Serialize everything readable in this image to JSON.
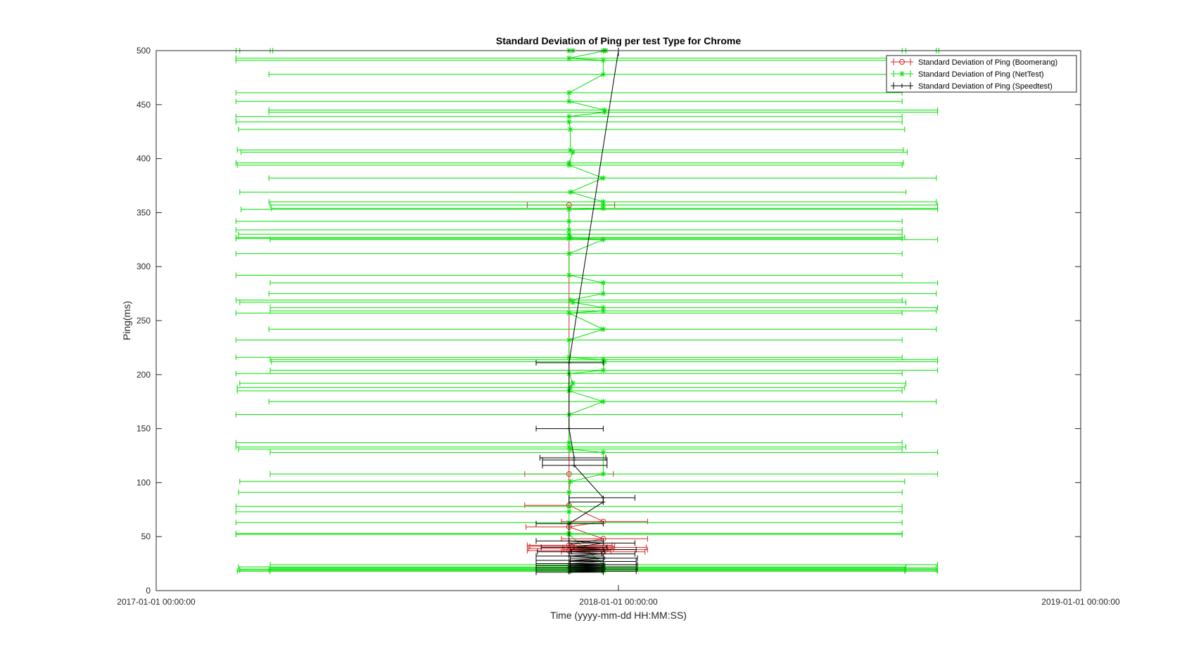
{
  "chart_data": {
    "type": "errorbar",
    "title": "Standard Deviation of Ping per test Type for Chrome",
    "xlabel": "Time (yyyy-mm-dd HH:MM:SS)",
    "ylabel": "Ping(ms)",
    "xlim": [
      "2017-01-01",
      "2019-01-01"
    ],
    "ylim": [
      0,
      500
    ],
    "x_ticks": [
      {
        "value": 0,
        "label": "2017-01-01 00:00:00"
      },
      {
        "value": 365,
        "label": "2018-01-01 00:00:00"
      },
      {
        "value": 730,
        "label": "2019-01-01 00:00:00"
      }
    ],
    "y_ticks": [
      0,
      50,
      100,
      150,
      200,
      250,
      300,
      350,
      400,
      450,
      500
    ],
    "x_units": "days since 2017-01-01",
    "legend_position": "top-right",
    "series": [
      {
        "name": "Standard Deviation of Ping (Boomerang)",
        "color": "#d62728",
        "marker": "o",
        "points": [
          {
            "x": 326,
            "y": 357,
            "lo": 293,
            "hi": 362
          },
          {
            "x": 326,
            "y": 108,
            "lo": 291,
            "hi": 361
          },
          {
            "x": 326,
            "y": 79,
            "lo": 291,
            "hi": 326
          },
          {
            "x": 353,
            "y": 64,
            "lo": 320,
            "hi": 388
          },
          {
            "x": 326,
            "y": 59,
            "lo": 292,
            "hi": 326
          },
          {
            "x": 353,
            "y": 48,
            "lo": 320,
            "hi": 388
          },
          {
            "x": 326,
            "y": 42,
            "lo": 293,
            "hi": 360
          },
          {
            "x": 328,
            "y": 41,
            "lo": 295,
            "hi": 362
          },
          {
            "x": 354,
            "y": 40,
            "lo": 321,
            "hi": 387
          },
          {
            "x": 327,
            "y": 39,
            "lo": 294,
            "hi": 361
          },
          {
            "x": 355,
            "y": 38,
            "lo": 322,
            "hi": 388
          },
          {
            "x": 326,
            "y": 37,
            "lo": 293,
            "hi": 359
          },
          {
            "x": 353,
            "y": 36,
            "lo": 320,
            "hi": 386
          }
        ]
      },
      {
        "name": "Standard Deviation of Ping (NetTest)",
        "color": "#00e000",
        "marker": "*",
        "points": [
          {
            "x": 326,
            "y": 500,
            "lo": 63,
            "hi": 589
          },
          {
            "x": 329,
            "y": 500,
            "lo": 66,
            "hi": 592
          },
          {
            "x": 353,
            "y": 500,
            "lo": 90,
            "hi": 616
          },
          {
            "x": 355,
            "y": 500,
            "lo": 92,
            "hi": 618
          },
          {
            "x": 326,
            "y": 493,
            "lo": 63,
            "hi": 615
          },
          {
            "x": 353,
            "y": 491,
            "lo": 63,
            "hi": 616
          },
          {
            "x": 353,
            "y": 478,
            "lo": 89,
            "hi": 591
          },
          {
            "x": 326,
            "y": 461,
            "lo": 63,
            "hi": 589
          },
          {
            "x": 326,
            "y": 453,
            "lo": 63,
            "hi": 589
          },
          {
            "x": 354,
            "y": 445,
            "lo": 89,
            "hi": 617
          },
          {
            "x": 354,
            "y": 443,
            "lo": 89,
            "hi": 617
          },
          {
            "x": 326,
            "y": 439,
            "lo": 63,
            "hi": 589
          },
          {
            "x": 326,
            "y": 434,
            "lo": 63,
            "hi": 589
          },
          {
            "x": 327,
            "y": 427,
            "lo": 65,
            "hi": 591
          },
          {
            "x": 327,
            "y": 408,
            "lo": 64,
            "hi": 590
          },
          {
            "x": 329,
            "y": 406,
            "lo": 67,
            "hi": 593
          },
          {
            "x": 326,
            "y": 396,
            "lo": 63,
            "hi": 590
          },
          {
            "x": 326,
            "y": 394,
            "lo": 64,
            "hi": 589
          },
          {
            "x": 353,
            "y": 382,
            "lo": 89,
            "hi": 616
          },
          {
            "x": 327,
            "y": 369,
            "lo": 66,
            "hi": 592
          },
          {
            "x": 353,
            "y": 360,
            "lo": 89,
            "hi": 616
          },
          {
            "x": 353,
            "y": 357,
            "lo": 90,
            "hi": 617
          },
          {
            "x": 353,
            "y": 354,
            "lo": 91,
            "hi": 617
          },
          {
            "x": 326,
            "y": 353,
            "lo": 67,
            "hi": 617
          },
          {
            "x": 326,
            "y": 342,
            "lo": 63,
            "hi": 589
          },
          {
            "x": 326,
            "y": 334,
            "lo": 63,
            "hi": 589
          },
          {
            "x": 326,
            "y": 330,
            "lo": 65,
            "hi": 589
          },
          {
            "x": 327,
            "y": 327,
            "lo": 63,
            "hi": 591
          },
          {
            "x": 326,
            "y": 326,
            "lo": 63,
            "hi": 589
          },
          {
            "x": 353,
            "y": 325,
            "lo": 90,
            "hi": 617
          },
          {
            "x": 326,
            "y": 312,
            "lo": 63,
            "hi": 589
          },
          {
            "x": 326,
            "y": 292,
            "lo": 63,
            "hi": 589
          },
          {
            "x": 353,
            "y": 285,
            "lo": 90,
            "hi": 617
          },
          {
            "x": 353,
            "y": 275,
            "lo": 89,
            "hi": 616
          },
          {
            "x": 327,
            "y": 269,
            "lo": 63,
            "hi": 589
          },
          {
            "x": 329,
            "y": 267,
            "lo": 66,
            "hi": 592
          },
          {
            "x": 353,
            "y": 262,
            "lo": 90,
            "hi": 617
          },
          {
            "x": 353,
            "y": 259,
            "lo": 90,
            "hi": 616
          },
          {
            "x": 326,
            "y": 257,
            "lo": 63,
            "hi": 589
          },
          {
            "x": 353,
            "y": 242,
            "lo": 89,
            "hi": 616
          },
          {
            "x": 326,
            "y": 232,
            "lo": 63,
            "hi": 589
          },
          {
            "x": 326,
            "y": 216,
            "lo": 63,
            "hi": 589
          },
          {
            "x": 353,
            "y": 214,
            "lo": 90,
            "hi": 617
          },
          {
            "x": 354,
            "y": 212,
            "lo": 91,
            "hi": 617
          },
          {
            "x": 353,
            "y": 204,
            "lo": 90,
            "hi": 617
          },
          {
            "x": 326,
            "y": 201,
            "lo": 63,
            "hi": 589
          },
          {
            "x": 329,
            "y": 192,
            "lo": 66,
            "hi": 592
          },
          {
            "x": 327,
            "y": 188,
            "lo": 64,
            "hi": 591
          },
          {
            "x": 326,
            "y": 185,
            "lo": 64,
            "hi": 589
          },
          {
            "x": 353,
            "y": 175,
            "lo": 89,
            "hi": 616
          },
          {
            "x": 326,
            "y": 163,
            "lo": 63,
            "hi": 589
          },
          {
            "x": 326,
            "y": 137,
            "lo": 63,
            "hi": 589
          },
          {
            "x": 326,
            "y": 133,
            "lo": 63,
            "hi": 592
          },
          {
            "x": 327,
            "y": 131,
            "lo": 65,
            "hi": 589
          },
          {
            "x": 353,
            "y": 128,
            "lo": 90,
            "hi": 617
          },
          {
            "x": 353,
            "y": 108,
            "lo": 90,
            "hi": 617
          },
          {
            "x": 327,
            "y": 101,
            "lo": 66,
            "hi": 591
          },
          {
            "x": 326,
            "y": 91,
            "lo": 65,
            "hi": 589
          },
          {
            "x": 326,
            "y": 78,
            "lo": 63,
            "hi": 589
          },
          {
            "x": 326,
            "y": 73,
            "lo": 63,
            "hi": 589
          },
          {
            "x": 326,
            "y": 63,
            "lo": 63,
            "hi": 589
          },
          {
            "x": 326,
            "y": 53,
            "lo": 63,
            "hi": 589
          },
          {
            "x": 326,
            "y": 52,
            "lo": 63,
            "hi": 589
          },
          {
            "x": 353,
            "y": 24,
            "lo": 90,
            "hi": 617
          },
          {
            "x": 326,
            "y": 22,
            "lo": 65,
            "hi": 592
          },
          {
            "x": 353,
            "y": 21,
            "lo": 90,
            "hi": 616
          },
          {
            "x": 327,
            "y": 20,
            "lo": 65,
            "hi": 591
          },
          {
            "x": 353,
            "y": 20,
            "lo": 90,
            "hi": 617
          },
          {
            "x": 326,
            "y": 19,
            "lo": 66,
            "hi": 592
          },
          {
            "x": 353,
            "y": 19,
            "lo": 89,
            "hi": 616
          },
          {
            "x": 327,
            "y": 18,
            "lo": 64,
            "hi": 591
          },
          {
            "x": 353,
            "y": 18,
            "lo": 90,
            "hi": 617
          }
        ]
      },
      {
        "name": "Standard Deviation of Ping (Speedtest)",
        "color": "#000000",
        "marker": "+",
        "points": [
          {
            "x": 365,
            "y": 500,
            "lo": 365,
            "hi": 365
          },
          {
            "x": 326,
            "y": 211,
            "lo": 300,
            "hi": 353
          },
          {
            "x": 326,
            "y": 150,
            "lo": 300,
            "hi": 353
          },
          {
            "x": 330,
            "y": 123,
            "lo": 303,
            "hi": 355
          },
          {
            "x": 330,
            "y": 121,
            "lo": 305,
            "hi": 356
          },
          {
            "x": 330,
            "y": 116,
            "lo": 305,
            "hi": 356
          },
          {
            "x": 353,
            "y": 86,
            "lo": 326,
            "hi": 378
          },
          {
            "x": 353,
            "y": 82,
            "lo": 326,
            "hi": 353
          },
          {
            "x": 326,
            "y": 62,
            "lo": 300,
            "hi": 353
          },
          {
            "x": 326,
            "y": 46,
            "lo": 300,
            "hi": 353
          },
          {
            "x": 353,
            "y": 44,
            "lo": 326,
            "hi": 378
          },
          {
            "x": 330,
            "y": 40,
            "lo": 304,
            "hi": 356
          },
          {
            "x": 353,
            "y": 38,
            "lo": 327,
            "hi": 379
          },
          {
            "x": 328,
            "y": 36,
            "lo": 301,
            "hi": 354
          },
          {
            "x": 352,
            "y": 34,
            "lo": 326,
            "hi": 378
          },
          {
            "x": 326,
            "y": 32,
            "lo": 300,
            "hi": 353
          },
          {
            "x": 354,
            "y": 30,
            "lo": 327,
            "hi": 380
          },
          {
            "x": 327,
            "y": 28,
            "lo": 300,
            "hi": 353
          },
          {
            "x": 353,
            "y": 27,
            "lo": 326,
            "hi": 379
          },
          {
            "x": 326,
            "y": 25,
            "lo": 300,
            "hi": 353
          },
          {
            "x": 354,
            "y": 24,
            "lo": 327,
            "hi": 380
          },
          {
            "x": 327,
            "y": 23,
            "lo": 300,
            "hi": 353
          },
          {
            "x": 353,
            "y": 22,
            "lo": 326,
            "hi": 379
          },
          {
            "x": 326,
            "y": 21,
            "lo": 300,
            "hi": 353
          },
          {
            "x": 354,
            "y": 20,
            "lo": 327,
            "hi": 380
          },
          {
            "x": 327,
            "y": 19,
            "lo": 300,
            "hi": 353
          },
          {
            "x": 353,
            "y": 18,
            "lo": 326,
            "hi": 379
          },
          {
            "x": 326,
            "y": 17,
            "lo": 300,
            "hi": 353
          }
        ]
      }
    ]
  }
}
